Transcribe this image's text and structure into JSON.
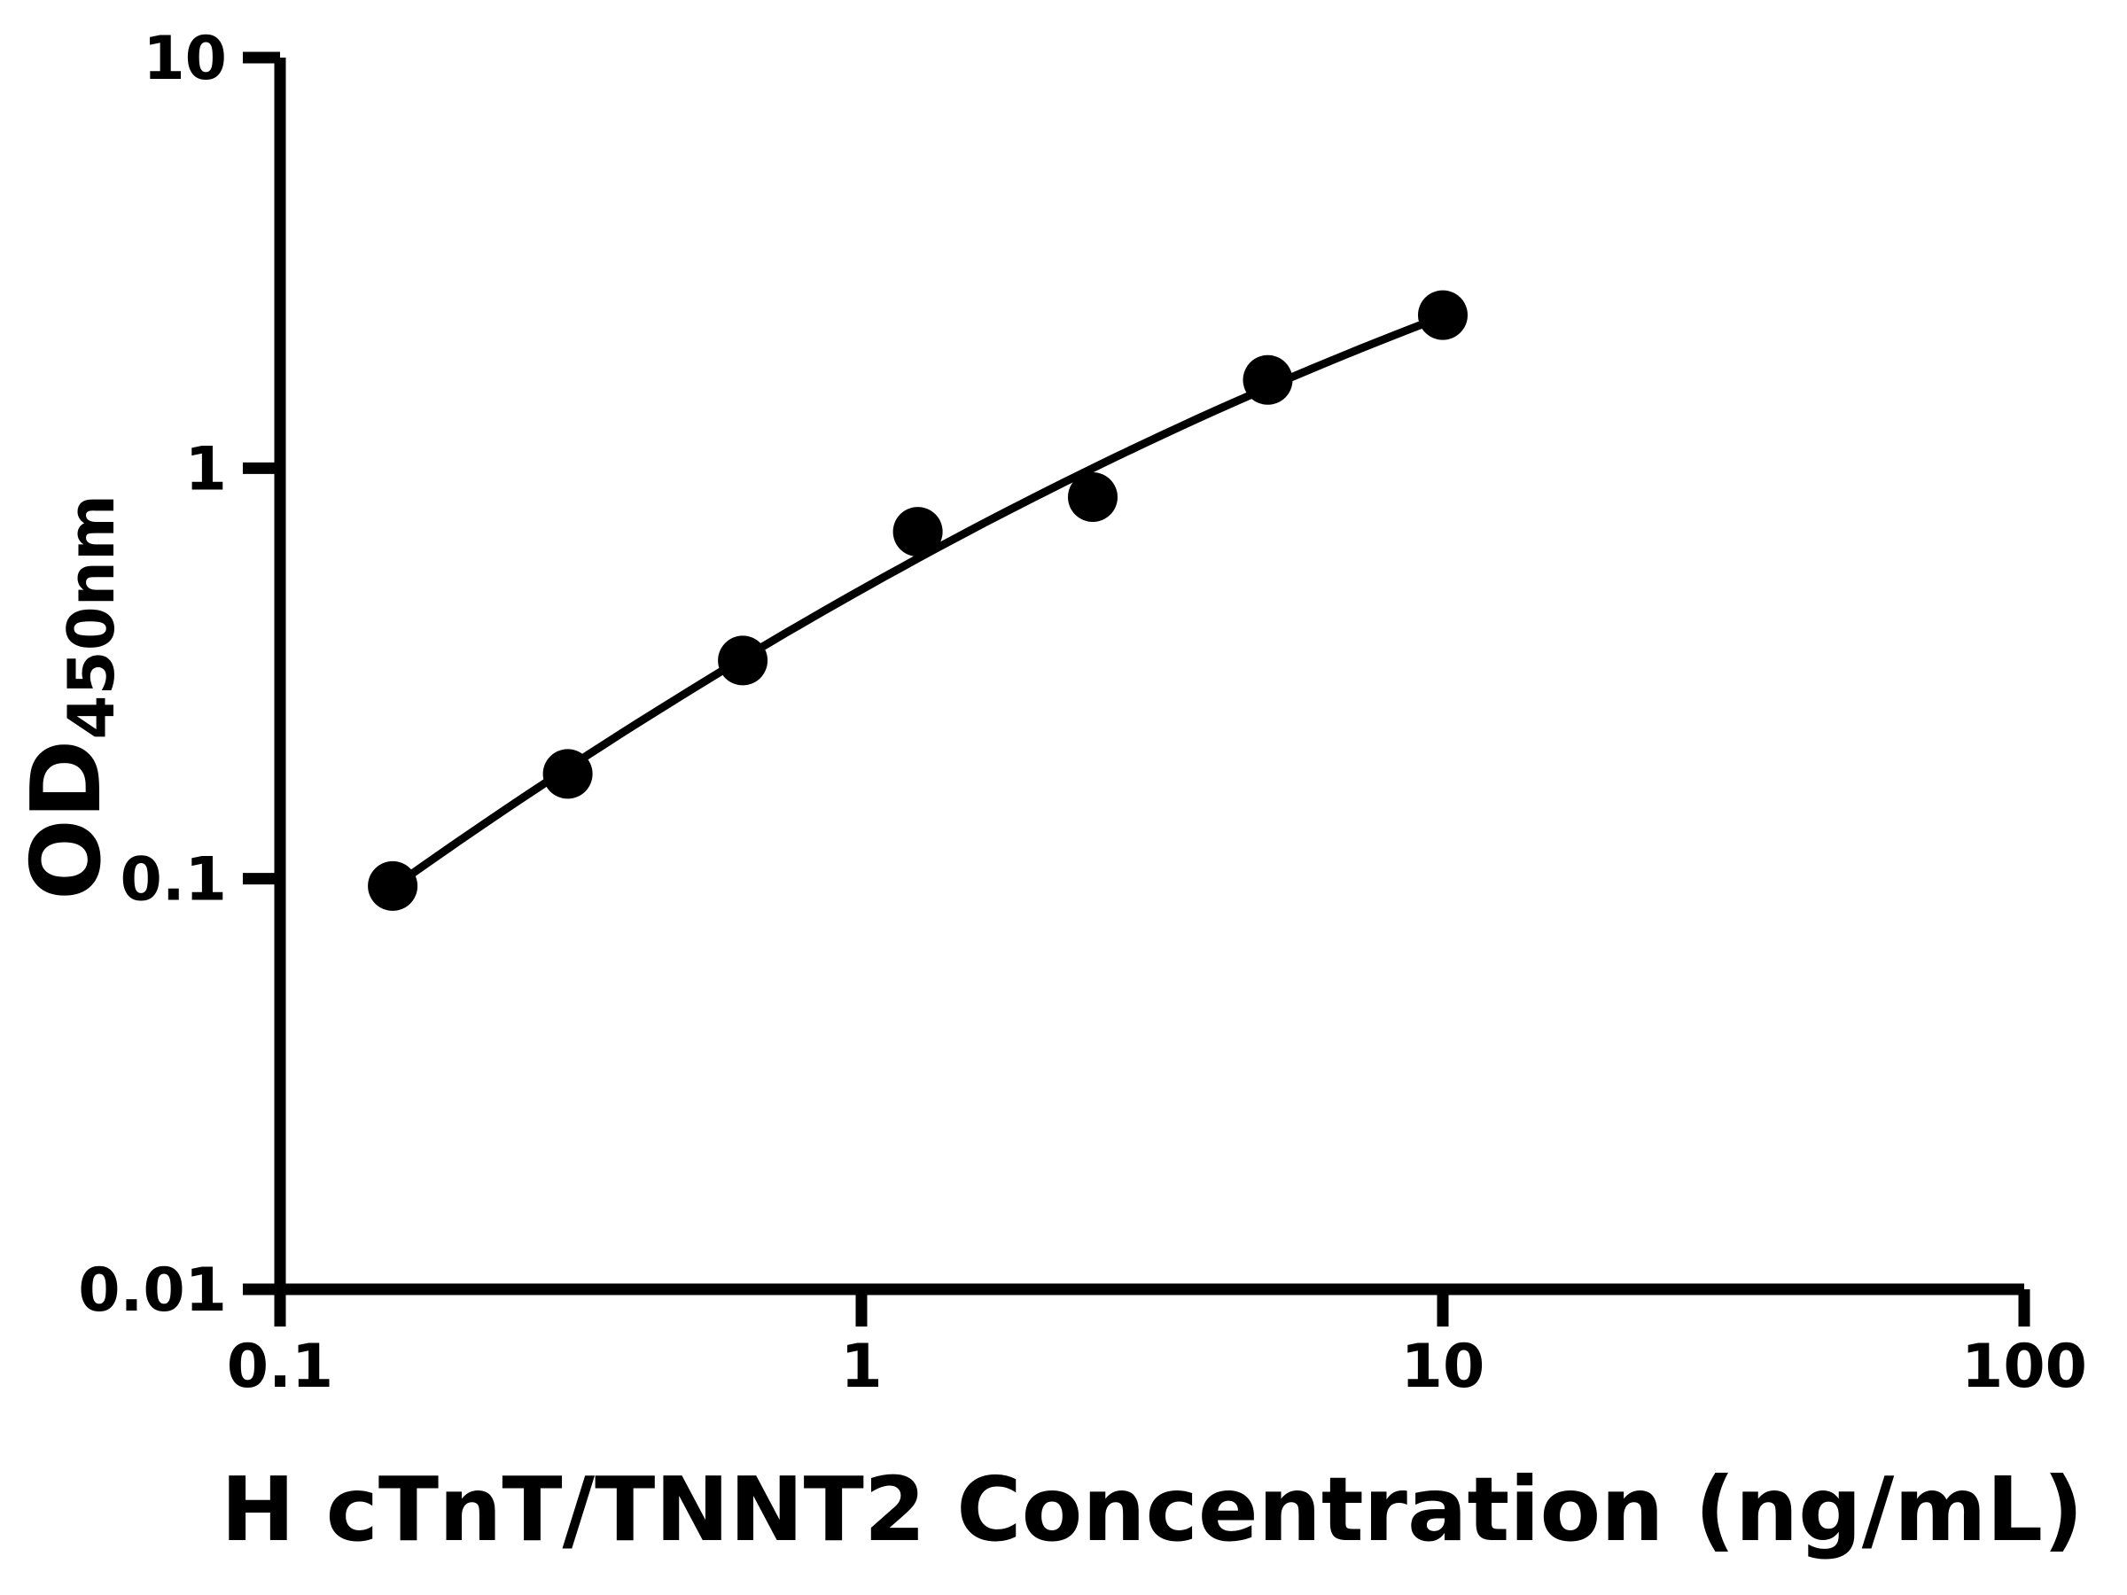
{
  "figure": {
    "background": "#ffffff"
  },
  "chart_data": {
    "type": "scatter",
    "title": "",
    "x": [
      0.15625,
      0.3125,
      0.625,
      1.25,
      2.5,
      5,
      10
    ],
    "y": [
      0.096,
      0.18,
      0.34,
      0.7,
      0.85,
      1.64,
      2.36
    ],
    "xlabel": "H cTnT/TNNT2 Concentration (ng/mL)",
    "ylabel": "OD450nm",
    "ylabel_main": "OD",
    "ylabel_sub": "450nm",
    "xscale": "log",
    "yscale": "log",
    "xlim": [
      0.1,
      100
    ],
    "ylim": [
      0.01,
      10
    ],
    "xticks": [
      0.1,
      1,
      10,
      100
    ],
    "xtick_labels": [
      "0.1",
      "1",
      "10",
      "100"
    ],
    "yticks": [
      10,
      1,
      0.1,
      0.01
    ],
    "ytick_labels": [
      "10",
      "1",
      "0.1",
      "0.01"
    ],
    "grid": false,
    "legend": false,
    "fit_curve": "quadratic-loglog",
    "style": {
      "color": "#000000",
      "marker_radius": 28,
      "curve_width": 9,
      "axis_width": 13,
      "tick_width": 13,
      "tick_length": 42
    }
  }
}
